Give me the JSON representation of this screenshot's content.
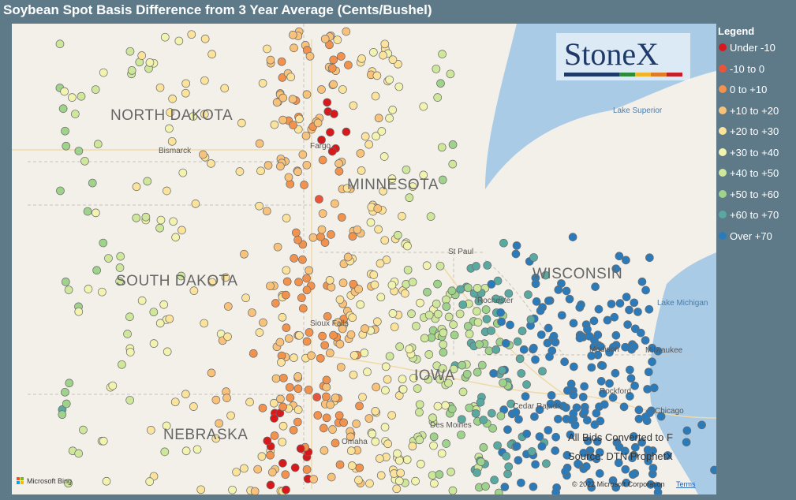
{
  "header": {
    "title": "Soybean Spot Basis Difference from 3 Year Average (Cents/Bushel)"
  },
  "legend": {
    "title": "Legend",
    "items": [
      {
        "label": "Under -10",
        "color": "#d7191c"
      },
      {
        "label": "-10 to 0",
        "color": "#e8553a"
      },
      {
        "label": "0 to +10",
        "color": "#f3924c"
      },
      {
        "label": "+10 to +20",
        "color": "#f8c27a"
      },
      {
        "label": "+20 to +30",
        "color": "#fbe39b"
      },
      {
        "label": "+30 to +40",
        "color": "#f3f3b0"
      },
      {
        "label": "+40 to +50",
        "color": "#cfe79a"
      },
      {
        "label": "+50 to +60",
        "color": "#9fd28a"
      },
      {
        "label": "+60 to +70",
        "color": "#5aa9a0"
      },
      {
        "label": "Over +70",
        "color": "#2b7bba"
      }
    ]
  },
  "map": {
    "states": [
      "NORTH DAKOTA",
      "SOUTH DAKOTA",
      "MINNESOTA",
      "WISCONSIN",
      "NEBRASKA",
      "IOWA"
    ],
    "cities": [
      "Bismarck",
      "Fargo",
      "St Paul",
      "Rochester",
      "Madison",
      "Milwaukee",
      "Rockford",
      "Chicago",
      "Cedar Rapids",
      "Des Moines",
      "Omaha",
      "Sioux Falls"
    ],
    "lakes": [
      "Lake Superior",
      "Lake Michigan"
    ],
    "logo": "StoneX",
    "notes": [
      "All Bids Converted to F",
      "Source: DTN ProphetX"
    ],
    "copyright": "© 2022 Microsoft Corporation",
    "terms": "Terms",
    "provider": "Microsoft Bing"
  }
}
